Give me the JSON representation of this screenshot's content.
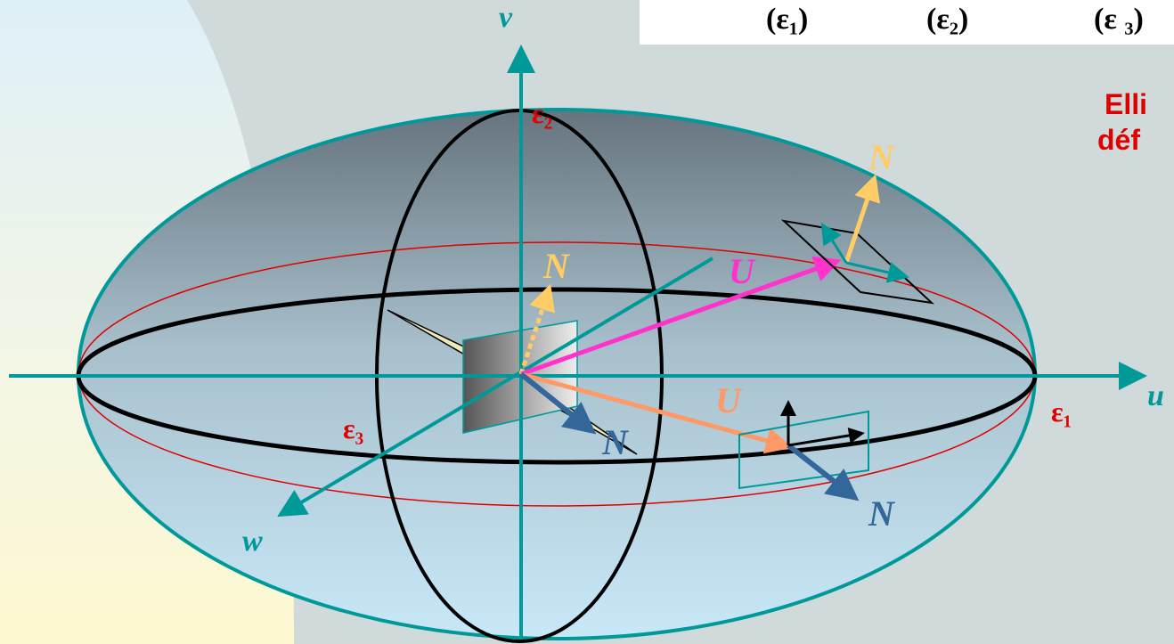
{
  "axes": {
    "v": "v",
    "u": "u",
    "w": "w"
  },
  "eigen_labels": {
    "e1": "ε₁",
    "e2": "ε₂",
    "e3": "ε₃"
  },
  "vector_labels": {
    "n_center": "N",
    "n_top_right": "N",
    "u_magenta": "U",
    "u_orange": "U",
    "n_blue_center": "N",
    "n_blue_right": "N"
  },
  "formula": [
    "(ε₁)",
    "(ε₂)",
    "(ε ₃)"
  ],
  "caption": [
    "Elli",
    "déf"
  ]
}
